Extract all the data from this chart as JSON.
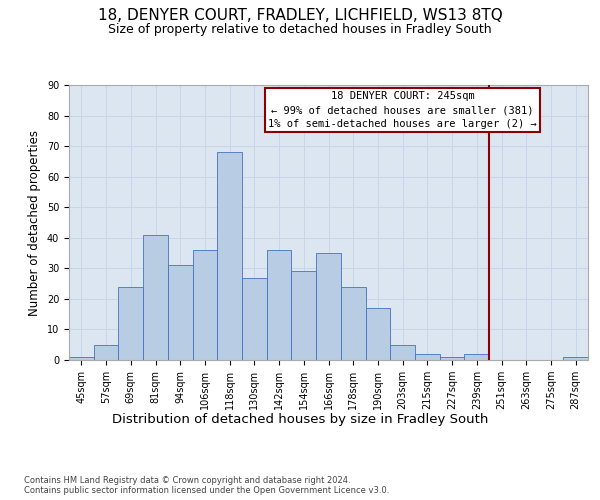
{
  "title": "18, DENYER COURT, FRADLEY, LICHFIELD, WS13 8TQ",
  "subtitle": "Size of property relative to detached houses in Fradley South",
  "xlabel": "Distribution of detached houses by size in Fradley South",
  "ylabel": "Number of detached properties",
  "bin_labels": [
    "45sqm",
    "57sqm",
    "69sqm",
    "81sqm",
    "94sqm",
    "106sqm",
    "118sqm",
    "130sqm",
    "142sqm",
    "154sqm",
    "166sqm",
    "178sqm",
    "190sqm",
    "203sqm",
    "215sqm",
    "227sqm",
    "239sqm",
    "251sqm",
    "263sqm",
    "275sqm",
    "287sqm"
  ],
  "bar_heights": [
    1,
    5,
    24,
    41,
    31,
    36,
    68,
    27,
    36,
    29,
    35,
    24,
    17,
    5,
    2,
    1,
    2,
    0,
    0,
    0,
    1
  ],
  "bar_color": "#b8cce4",
  "bar_edge_color": "#4472c4",
  "grid_color": "#c8d4e8",
  "background_color": "#dce6f1",
  "vline_x": 16.5,
  "vline_color": "#8b0000",
  "annotation_text": "18 DENYER COURT: 245sqm\n← 99% of detached houses are smaller (381)\n1% of semi-detached houses are larger (2) →",
  "annotation_box_color": "#8b0000",
  "ylim": [
    0,
    90
  ],
  "yticks": [
    0,
    10,
    20,
    30,
    40,
    50,
    60,
    70,
    80,
    90
  ],
  "footer_text": "Contains HM Land Registry data © Crown copyright and database right 2024.\nContains public sector information licensed under the Open Government Licence v3.0.",
  "title_fontsize": 11,
  "subtitle_fontsize": 9,
  "xlabel_fontsize": 9.5,
  "ylabel_fontsize": 8.5,
  "tick_fontsize": 7,
  "annotation_fontsize": 7.5
}
